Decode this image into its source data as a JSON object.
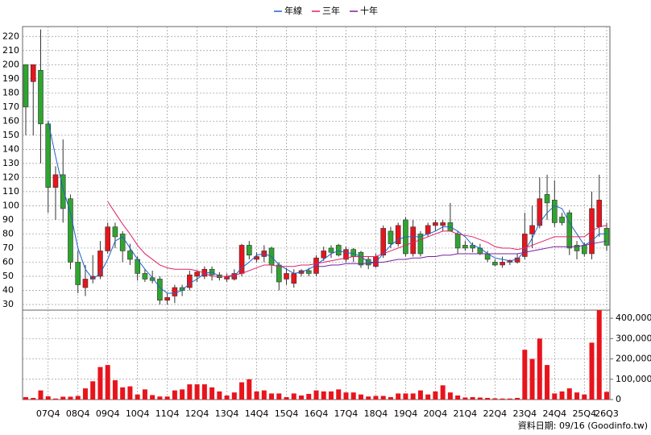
{
  "chart_data": {
    "type": "candlestick",
    "categories": [
      null,
      null,
      null,
      "07Q4",
      null,
      null,
      null,
      "08Q4",
      null,
      null,
      null,
      "09Q4",
      null,
      null,
      null,
      "10Q4",
      null,
      null,
      null,
      "11Q4",
      null,
      null,
      null,
      "12Q4",
      null,
      null,
      null,
      "13Q4",
      null,
      null,
      null,
      "14Q4",
      null,
      null,
      null,
      "15Q4",
      null,
      null,
      null,
      "16Q4",
      null,
      null,
      null,
      "17Q4",
      null,
      null,
      null,
      "18Q4",
      null,
      null,
      null,
      "19Q4",
      null,
      null,
      null,
      "20Q4",
      null,
      null,
      null,
      "21Q4",
      null,
      null,
      null,
      "22Q4",
      null,
      null,
      null,
      "23Q4",
      null,
      null,
      null,
      "24Q4",
      null,
      null,
      null,
      "25Q4",
      null,
      null,
      "26Q3"
    ],
    "open": [
      200,
      188,
      196,
      158,
      113,
      122,
      105,
      60,
      42,
      48,
      50,
      68,
      85,
      80,
      68,
      62,
      52,
      49,
      48,
      33,
      36,
      42,
      42,
      50,
      50,
      55,
      51,
      48,
      48,
      52,
      72,
      62,
      64,
      70,
      58,
      48,
      45,
      52,
      54,
      52,
      63,
      70,
      72,
      62,
      69,
      67,
      62,
      57,
      65,
      82,
      73,
      90,
      66,
      80,
      80,
      86,
      86,
      88,
      80,
      72,
      72,
      70,
      66,
      60,
      58,
      60,
      60,
      64,
      80,
      86,
      108,
      104,
      92,
      95,
      72,
      72,
      66,
      85,
      84
    ],
    "high": [
      200,
      200,
      225,
      160,
      128,
      147,
      108,
      68,
      58,
      65,
      75,
      88,
      88,
      82,
      73,
      64,
      55,
      54,
      50,
      38,
      44,
      44,
      54,
      54,
      57,
      57,
      53,
      52,
      55,
      73,
      75,
      67,
      72,
      71,
      60,
      56,
      55,
      55,
      56,
      65,
      71,
      72,
      73,
      71,
      70,
      68,
      64,
      66,
      86,
      85,
      88,
      92,
      90,
      82,
      88,
      90,
      90,
      102,
      82,
      75,
      74,
      73,
      68,
      62,
      64,
      62,
      66,
      95,
      100,
      120,
      122,
      118,
      95,
      97,
      75,
      74,
      110,
      122,
      88
    ],
    "low": [
      150,
      150,
      130,
      95,
      90,
      88,
      55,
      38,
      36,
      45,
      48,
      66,
      70,
      60,
      58,
      47,
      46,
      45,
      30,
      30,
      31,
      36,
      40,
      46,
      48,
      47,
      47,
      46,
      47,
      50,
      62,
      60,
      60,
      52,
      40,
      44,
      42,
      50,
      50,
      50,
      61,
      63,
      64,
      60,
      60,
      56,
      55,
      56,
      63,
      70,
      71,
      64,
      64,
      64,
      78,
      82,
      82,
      82,
      66,
      68,
      67,
      65,
      60,
      57,
      56,
      58,
      59,
      62,
      70,
      84,
      90,
      85,
      86,
      65,
      62,
      64,
      62,
      78,
      68
    ],
    "close": [
      170,
      200,
      158,
      113,
      122,
      98,
      60,
      44,
      48,
      50,
      68,
      85,
      78,
      68,
      62,
      52,
      48,
      47,
      33,
      35,
      42,
      40,
      51,
      53,
      55,
      51,
      49,
      50,
      52,
      72,
      65,
      64,
      68,
      58,
      46,
      52,
      52,
      54,
      52,
      63,
      68,
      67,
      65,
      69,
      64,
      58,
      58,
      64,
      84,
      73,
      86,
      66,
      85,
      66,
      86,
      88,
      88,
      82,
      70,
      70,
      70,
      66,
      62,
      58,
      60,
      61,
      63,
      80,
      86,
      105,
      102,
      88,
      88,
      70,
      68,
      66,
      98,
      104,
      72
    ],
    "up_color": "#e8141c",
    "down_color": "#2fa52f",
    "ylim": [
      26,
      227
    ],
    "yticks": [
      30,
      40,
      50,
      60,
      70,
      80,
      90,
      100,
      110,
      120,
      130,
      140,
      150,
      160,
      170,
      180,
      190,
      200,
      210,
      220
    ],
    "grid": true,
    "series": [
      {
        "name": "年線",
        "color": "#1f63c6",
        "values": [
          null,
          null,
          null,
          160,
          135,
          112,
          95,
          70,
          55,
          48,
          52,
          62,
          75,
          78,
          70,
          62,
          55,
          49,
          42,
          38,
          38,
          40,
          45,
          48,
          52,
          53,
          50,
          50,
          50,
          56,
          60,
          65,
          66,
          64,
          58,
          55,
          52,
          53,
          55,
          58,
          62,
          66,
          68,
          67,
          66,
          64,
          60,
          60,
          66,
          72,
          76,
          78,
          78,
          78,
          80,
          82,
          85,
          85,
          82,
          78,
          72,
          70,
          66,
          63,
          62,
          61,
          62,
          68,
          77,
          88,
          95,
          100,
          98,
          88,
          80,
          72,
          75,
          80,
          80
        ]
      },
      {
        "name": "三年",
        "color": "#e0206a",
        "values": [
          null,
          null,
          null,
          null,
          null,
          null,
          null,
          null,
          null,
          null,
          null,
          103,
          95,
          87,
          80,
          72,
          66,
          62,
          58,
          56,
          55,
          55,
          55,
          54,
          52,
          50,
          50,
          50,
          51,
          52,
          54,
          56,
          58,
          58,
          57,
          57,
          57,
          58,
          58,
          59,
          60,
          61,
          62,
          63,
          64,
          64,
          64,
          64,
          66,
          68,
          70,
          72,
          74,
          76,
          78,
          80,
          82,
          82,
          80,
          79,
          78,
          76,
          74,
          71,
          70,
          70,
          69,
          70,
          72,
          74,
          76,
          78,
          78,
          78,
          78,
          78,
          82,
          85,
          86
        ]
      },
      {
        "name": "十年",
        "color": "#7a1fa0",
        "values": [
          null,
          null,
          null,
          null,
          null,
          null,
          null,
          null,
          null,
          null,
          null,
          null,
          null,
          null,
          null,
          null,
          null,
          null,
          null,
          null,
          null,
          null,
          null,
          null,
          null,
          null,
          null,
          null,
          null,
          null,
          null,
          null,
          null,
          null,
          null,
          null,
          null,
          null,
          null,
          57,
          57,
          58,
          58,
          59,
          59,
          59,
          59,
          60,
          60,
          61,
          62,
          62,
          63,
          63,
          64,
          64,
          65,
          65,
          66,
          66,
          66,
          66,
          66,
          66,
          66,
          66,
          66,
          67,
          68,
          69,
          70,
          71,
          71,
          71,
          71,
          72,
          73,
          74,
          75
        ]
      }
    ],
    "volume": {
      "color": "#e8141c",
      "values": [
        12000,
        8000,
        45000,
        16000,
        5000,
        14000,
        14000,
        18000,
        55000,
        90000,
        160000,
        170000,
        95000,
        60000,
        65000,
        25000,
        50000,
        22000,
        15000,
        15000,
        45000,
        50000,
        75000,
        75000,
        75000,
        60000,
        40000,
        20000,
        35000,
        85000,
        100000,
        40000,
        45000,
        30000,
        30000,
        12000,
        30000,
        20000,
        28000,
        45000,
        40000,
        40000,
        50000,
        35000,
        35000,
        25000,
        15000,
        18000,
        18000,
        12000,
        30000,
        30000,
        30000,
        45000,
        25000,
        40000,
        70000,
        35000,
        20000,
        10000,
        12000,
        10000,
        8000,
        6000,
        5000,
        5000,
        8000,
        245000,
        200000,
        300000,
        170000,
        30000,
        40000,
        55000,
        35000,
        25000,
        280000,
        440000,
        38000
      ],
      "ylim": [
        0,
        440000
      ],
      "yticks": [
        0,
        {
          "value": 100000,
          "label": "100,000"
        },
        {
          "value": 200000,
          "label": "200,000"
        },
        {
          "value": 300000,
          "label": "300,000"
        },
        {
          "value": 400000,
          "label": "400,000"
        }
      ]
    },
    "note": "資料日期: 09/16 (Goodinfo.tw)"
  }
}
